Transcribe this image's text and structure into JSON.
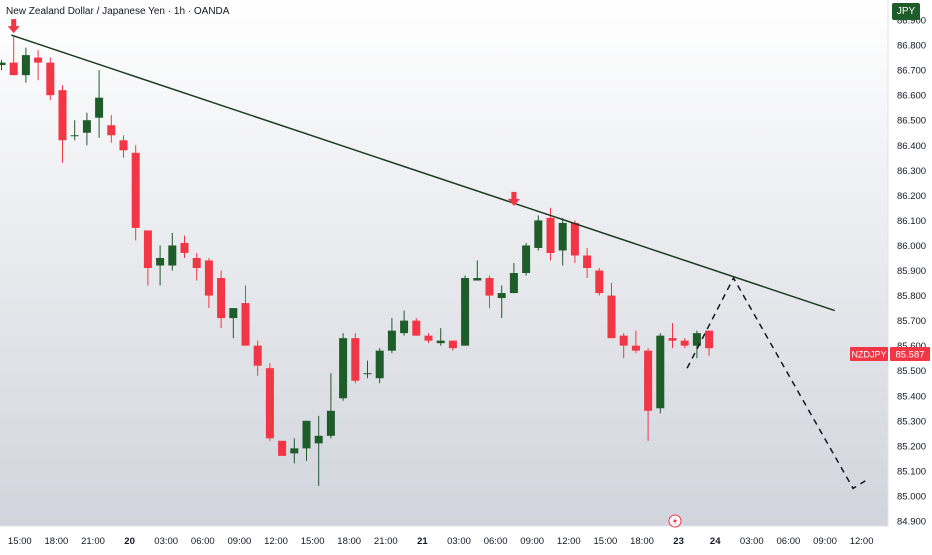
{
  "header": {
    "title": "New Zealand Dollar / Japanese Yen · 1h · OANDA",
    "currency": "JPY"
  },
  "colors": {
    "up": "#1e5c2a",
    "down": "#f23645",
    "trendline": "#1b3a1f",
    "projection": "#131722",
    "marker": "#f23645",
    "bg_top": "#ffffff",
    "bg_bottom": "#d1d4dc"
  },
  "price_tag": {
    "symbol": "NZDJPY",
    "value": "85.587"
  },
  "footer_icon": "lightning-icon",
  "chart_data": {
    "type": "candlestick",
    "symbol": "NZDJPY",
    "timeframe": "1h",
    "ylim": [
      84.88,
      86.98
    ],
    "y_ticks": [
      "86.900",
      "86.800",
      "86.700",
      "86.600",
      "86.500",
      "86.400",
      "86.300",
      "86.200",
      "86.100",
      "86.000",
      "85.900",
      "85.800",
      "85.700",
      "85.600",
      "85.500",
      "85.400",
      "85.300",
      "85.200",
      "85.100",
      "85.000",
      "84.900"
    ],
    "x_ticks": [
      {
        "i": 1.5,
        "label": "15:00"
      },
      {
        "i": 4.5,
        "label": "18:00"
      },
      {
        "i": 7.5,
        "label": "21:00"
      },
      {
        "i": 10.5,
        "label": "20"
      },
      {
        "i": 13.5,
        "label": "03:00"
      },
      {
        "i": 16.5,
        "label": "06:00"
      },
      {
        "i": 19.5,
        "label": "09:00"
      },
      {
        "i": 22.5,
        "label": "12:00"
      },
      {
        "i": 25.5,
        "label": "15:00"
      },
      {
        "i": 28.5,
        "label": "18:00"
      },
      {
        "i": 31.5,
        "label": "21:00"
      },
      {
        "i": 34.5,
        "label": "21"
      },
      {
        "i": 37.5,
        "label": "03:00"
      },
      {
        "i": 40.5,
        "label": "06:00"
      },
      {
        "i": 43.5,
        "label": "09:00"
      },
      {
        "i": 46.5,
        "label": "12:00"
      },
      {
        "i": 49.5,
        "label": "15:00"
      },
      {
        "i": 52.5,
        "label": "18:00"
      },
      {
        "i": 55.5,
        "label": "23"
      },
      {
        "i": 58.5,
        "label": "24"
      },
      {
        "i": 61.5,
        "label": "03:00"
      },
      {
        "i": 64.5,
        "label": "06:00"
      },
      {
        "i": 67.5,
        "label": "09:00"
      },
      {
        "i": 70.5,
        "label": "12:00"
      }
    ],
    "candles": [
      {
        "o": 86.72,
        "h": 86.74,
        "l": 86.7,
        "c": 86.73
      },
      {
        "o": 86.73,
        "h": 86.84,
        "l": 86.68,
        "c": 86.68
      },
      {
        "o": 86.68,
        "h": 86.79,
        "l": 86.65,
        "c": 86.76
      },
      {
        "o": 86.75,
        "h": 86.78,
        "l": 86.66,
        "c": 86.73
      },
      {
        "o": 86.73,
        "h": 86.75,
        "l": 86.58,
        "c": 86.6
      },
      {
        "o": 86.62,
        "h": 86.64,
        "l": 86.33,
        "c": 86.42
      },
      {
        "o": 86.44,
        "h": 86.5,
        "l": 86.42,
        "c": 86.44
      },
      {
        "o": 86.45,
        "h": 86.53,
        "l": 86.4,
        "c": 86.5
      },
      {
        "o": 86.51,
        "h": 86.7,
        "l": 86.43,
        "c": 86.59
      },
      {
        "o": 86.48,
        "h": 86.52,
        "l": 86.41,
        "c": 86.44
      },
      {
        "o": 86.42,
        "h": 86.44,
        "l": 86.35,
        "c": 86.38
      },
      {
        "o": 86.37,
        "h": 86.4,
        "l": 86.02,
        "c": 86.07
      },
      {
        "o": 86.06,
        "h": 86.06,
        "l": 85.84,
        "c": 85.91
      },
      {
        "o": 85.92,
        "h": 86.0,
        "l": 85.84,
        "c": 85.95
      },
      {
        "o": 85.92,
        "h": 86.05,
        "l": 85.9,
        "c": 86.0
      },
      {
        "o": 86.01,
        "h": 86.04,
        "l": 85.95,
        "c": 85.97
      },
      {
        "o": 85.95,
        "h": 85.97,
        "l": 85.86,
        "c": 85.91
      },
      {
        "o": 85.94,
        "h": 85.95,
        "l": 85.75,
        "c": 85.8
      },
      {
        "o": 85.87,
        "h": 85.9,
        "l": 85.67,
        "c": 85.71
      },
      {
        "o": 85.71,
        "h": 85.75,
        "l": 85.63,
        "c": 85.75
      },
      {
        "o": 85.77,
        "h": 85.84,
        "l": 85.6,
        "c": 85.6
      },
      {
        "o": 85.6,
        "h": 85.62,
        "l": 85.48,
        "c": 85.52
      },
      {
        "o": 85.51,
        "h": 85.53,
        "l": 85.22,
        "c": 85.23
      },
      {
        "o": 85.22,
        "h": 85.22,
        "l": 85.16,
        "c": 85.16
      },
      {
        "o": 85.17,
        "h": 85.23,
        "l": 85.13,
        "c": 85.19
      },
      {
        "o": 85.19,
        "h": 85.3,
        "l": 85.14,
        "c": 85.3
      },
      {
        "o": 85.21,
        "h": 85.32,
        "l": 85.04,
        "c": 85.24
      },
      {
        "o": 85.24,
        "h": 85.49,
        "l": 85.23,
        "c": 85.34
      },
      {
        "o": 85.39,
        "h": 85.65,
        "l": 85.38,
        "c": 85.63
      },
      {
        "o": 85.63,
        "h": 85.65,
        "l": 85.45,
        "c": 85.46
      },
      {
        "o": 85.49,
        "h": 85.54,
        "l": 85.47,
        "c": 85.49
      },
      {
        "o": 85.47,
        "h": 85.59,
        "l": 85.45,
        "c": 85.58
      },
      {
        "o": 85.58,
        "h": 85.71,
        "l": 85.57,
        "c": 85.66
      },
      {
        "o": 85.65,
        "h": 85.74,
        "l": 85.64,
        "c": 85.7
      },
      {
        "o": 85.7,
        "h": 85.71,
        "l": 85.64,
        "c": 85.64
      },
      {
        "o": 85.64,
        "h": 85.65,
        "l": 85.61,
        "c": 85.62
      },
      {
        "o": 85.61,
        "h": 85.67,
        "l": 85.6,
        "c": 85.62
      },
      {
        "o": 85.62,
        "h": 85.62,
        "l": 85.58,
        "c": 85.59
      },
      {
        "o": 85.6,
        "h": 85.88,
        "l": 85.6,
        "c": 85.87
      },
      {
        "o": 85.86,
        "h": 85.94,
        "l": 85.86,
        "c": 85.87
      },
      {
        "o": 85.87,
        "h": 85.88,
        "l": 85.75,
        "c": 85.8
      },
      {
        "o": 85.79,
        "h": 85.84,
        "l": 85.71,
        "c": 85.81
      },
      {
        "o": 85.81,
        "h": 85.93,
        "l": 85.81,
        "c": 85.89
      },
      {
        "o": 85.89,
        "h": 86.01,
        "l": 85.88,
        "c": 86.0
      },
      {
        "o": 85.99,
        "h": 86.12,
        "l": 85.98,
        "c": 86.1
      },
      {
        "o": 86.11,
        "h": 86.15,
        "l": 85.94,
        "c": 85.97
      },
      {
        "o": 85.98,
        "h": 86.11,
        "l": 85.92,
        "c": 86.09
      },
      {
        "o": 86.09,
        "h": 86.1,
        "l": 85.93,
        "c": 85.96
      },
      {
        "o": 85.96,
        "h": 85.99,
        "l": 85.87,
        "c": 85.91
      },
      {
        "o": 85.9,
        "h": 85.91,
        "l": 85.8,
        "c": 85.81
      },
      {
        "o": 85.8,
        "h": 85.85,
        "l": 85.63,
        "c": 85.63
      },
      {
        "o": 85.64,
        "h": 85.65,
        "l": 85.55,
        "c": 85.6
      },
      {
        "o": 85.6,
        "h": 85.66,
        "l": 85.57,
        "c": 85.58
      },
      {
        "o": 85.58,
        "h": 85.59,
        "l": 85.22,
        "c": 85.34
      },
      {
        "o": 85.35,
        "h": 85.65,
        "l": 85.33,
        "c": 85.64
      },
      {
        "o": 85.63,
        "h": 85.69,
        "l": 85.59,
        "c": 85.62
      },
      {
        "o": 85.62,
        "h": 85.63,
        "l": 85.59,
        "c": 85.6
      },
      {
        "o": 85.6,
        "h": 85.66,
        "l": 85.55,
        "c": 85.65
      },
      {
        "o": 85.66,
        "h": 85.66,
        "l": 85.56,
        "c": 85.59
      }
    ],
    "trendline": {
      "from": {
        "i": 0.8,
        "p": 86.84
      },
      "to": {
        "i": 68.3,
        "p": 85.74
      }
    },
    "projection": [
      {
        "i": 56.2,
        "p": 85.51
      },
      {
        "i": 60.0,
        "p": 85.87
      },
      {
        "i": 69.8,
        "p": 85.03
      },
      {
        "i": 70.8,
        "p": 85.06
      }
    ],
    "markers": [
      {
        "i": 1,
        "p": 86.84,
        "direction": "down"
      },
      {
        "i": 42,
        "p": 86.15,
        "direction": "down"
      }
    ]
  }
}
